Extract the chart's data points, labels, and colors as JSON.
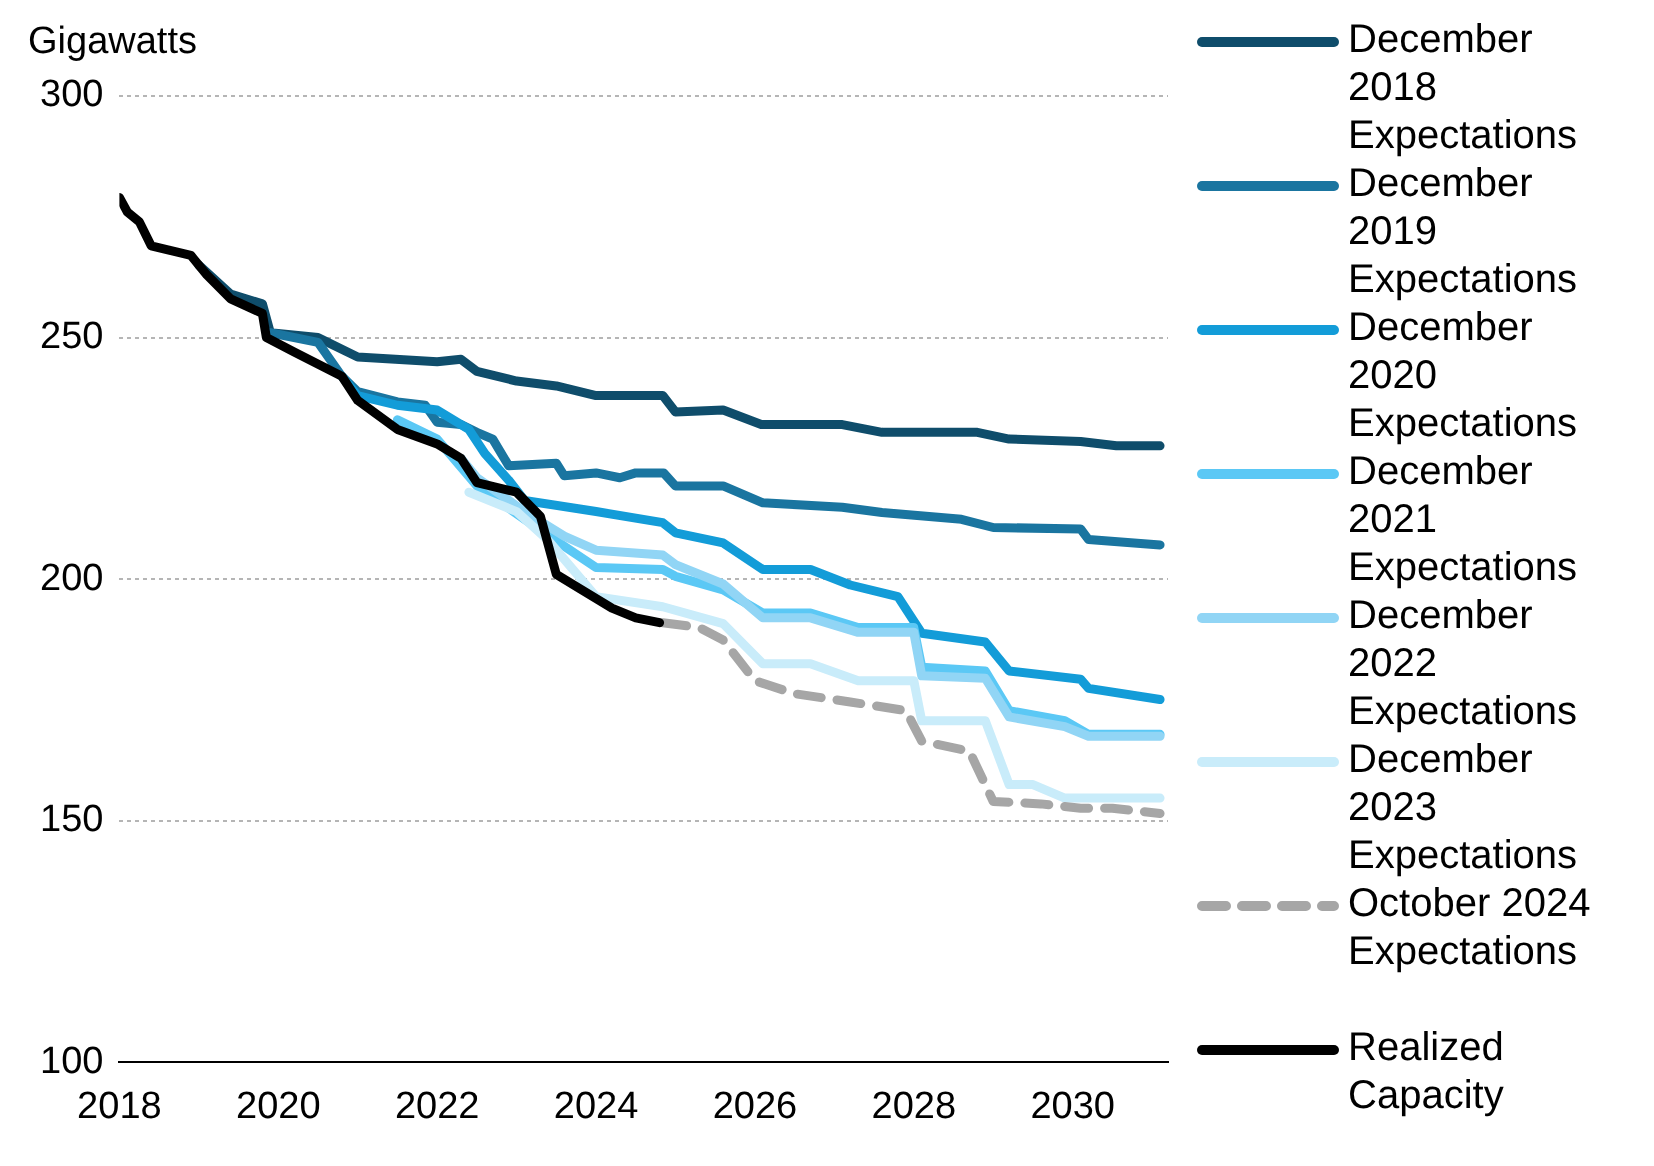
{
  "chart_data": {
    "type": "line",
    "ylabel": "Gigawatts",
    "xlim": [
      2018,
      2031.2
    ],
    "xticks": [
      2018,
      2020,
      2022,
      2024,
      2026,
      2028,
      2030
    ],
    "ylim": [
      100,
      300
    ],
    "yticks": [
      100,
      150,
      200,
      250,
      300
    ],
    "grid": "y",
    "legend": "right",
    "line_style": "solid",
    "marker": "none",
    "series": [
      {
        "name": "December 2018 Expectations",
        "color": "#0f4d6b",
        "x": [
          2019.0,
          2019.4,
          2019.8,
          2019.9,
          2020.5,
          2021.0,
          2022.0,
          2022.3,
          2022.5,
          2023.0,
          2023.5,
          2024.0,
          2024.84,
          2025.0,
          2025.6,
          2026.08,
          2027.1,
          2027.6,
          2028.8,
          2029.2,
          2030.1,
          2030.55,
          2031.1
        ],
        "values": [
          265,
          259,
          257,
          251,
          250,
          246,
          245,
          245.5,
          243,
          241,
          240,
          238,
          238,
          234.6,
          235,
          232,
          232,
          230.4,
          230.4,
          229,
          228.5,
          227.6,
          227.6
        ]
      },
      {
        "name": "December 2019 Expectations",
        "color": "#1a75a0",
        "x": [
          2019.9,
          2020.5,
          2020.8,
          2021.0,
          2021.5,
          2021.85,
          2022.0,
          2022.3,
          2022.5,
          2022.7,
          2022.9,
          2023.5,
          2023.6,
          2024.0,
          2024.3,
          2024.5,
          2024.85,
          2025.0,
          2025.6,
          2026.1,
          2027.1,
          2027.6,
          2028.6,
          2029.0,
          2030.1,
          2030.2,
          2031.1
        ],
        "values": [
          251,
          249,
          242,
          238.8,
          236.7,
          236,
          232.5,
          232,
          230.4,
          229,
          223.5,
          224,
          221.4,
          222,
          221,
          222,
          222,
          219.3,
          219.3,
          215.8,
          214.9,
          213.8,
          212.4,
          210.7,
          210.4,
          208.2,
          207.1
        ]
      },
      {
        "name": "December 2020 Expectations",
        "color": "#139cd8",
        "x": [
          2020.8,
          2021.0,
          2021.5,
          2022.0,
          2022.4,
          2022.6,
          2022.9,
          2023.1,
          2024.0,
          2024.84,
          2025.0,
          2025.6,
          2026.1,
          2026.7,
          2027.2,
          2027.8,
          2028.1,
          2028.9,
          2029.2,
          2030.1,
          2030.2,
          2031.1
        ],
        "values": [
          242,
          238,
          236,
          235,
          231,
          226,
          220.5,
          216.3,
          214,
          211.7,
          209.6,
          207.5,
          202,
          202,
          198.8,
          196.4,
          188.8,
          187,
          181,
          179.3,
          177.4,
          175.1
        ]
      },
      {
        "name": "December 2021 Expectations",
        "color": "#5bc8f5",
        "x": [
          2021.5,
          2022.0,
          2022.5,
          2023.1,
          2023.6,
          2024.0,
          2024.84,
          2025.0,
          2025.6,
          2026.1,
          2026.7,
          2027.3,
          2028.0,
          2028.1,
          2028.9,
          2029.2,
          2029.9,
          2030.2,
          2031.1
        ],
        "values": [
          233,
          229,
          219.3,
          212.4,
          206.8,
          202.4,
          202,
          200.6,
          197.8,
          193,
          193,
          190,
          190,
          181.8,
          181,
          172.8,
          170.7,
          167.9,
          167.9
        ]
      },
      {
        "name": "December 2022 Expectations",
        "color": "#91d5f5",
        "x": [
          2022.3,
          2022.5,
          2023.1,
          2023.6,
          2024.0,
          2024.84,
          2025.0,
          2025.6,
          2026.1,
          2026.7,
          2027.3,
          2028.0,
          2028.1,
          2028.9,
          2029.2,
          2029.9,
          2030.2,
          2031.1
        ],
        "values": [
          225,
          221,
          214,
          208.9,
          206,
          205,
          203,
          199,
          192,
          192,
          189,
          189,
          180,
          179.5,
          171.5,
          169.5,
          167.5,
          167.5
        ]
      },
      {
        "name": "December 2023 Expectations",
        "color": "#c9ecfa",
        "x": [
          2022.4,
          2023.0,
          2023.4,
          2024.0,
          2024.84,
          2025.6,
          2026.1,
          2026.7,
          2027.3,
          2028.0,
          2028.1,
          2028.9,
          2029.2,
          2029.5,
          2029.9,
          2031.1
        ],
        "values": [
          218,
          214,
          208,
          196.4,
          194.3,
          190.8,
          182.5,
          182.5,
          179,
          179,
          170.7,
          170.7,
          157.5,
          157.5,
          154.7,
          154.7
        ]
      },
      {
        "name": "October 2024 Expectations",
        "color": "#a6a6a6",
        "line_style": "dashed",
        "x": [
          2024.84,
          2025.3,
          2025.6,
          2026.0,
          2026.5,
          2027.2,
          2027.9,
          2028.1,
          2028.7,
          2029.0,
          2029.6,
          2030.1,
          2030.5,
          2031.1
        ],
        "values": [
          191,
          190,
          187.4,
          179,
          176.3,
          174.6,
          172.8,
          166.5,
          164.4,
          154,
          153.5,
          152.6,
          152.6,
          151.5
        ]
      },
      {
        "name": "Realized Capacity",
        "color": "#000000",
        "x": [
          2018,
          2018.1,
          2018.25,
          2018.4,
          2018.9,
          2019.1,
          2019.4,
          2019.8,
          2019.85,
          2020.2,
          2020.8,
          2021.0,
          2021.5,
          2022.0,
          2022.3,
          2022.5,
          2023.0,
          2023.3,
          2023.5,
          2023.8,
          2024.2,
          2024.5,
          2024.8
        ],
        "values": [
          279,
          276,
          274,
          269,
          267,
          263,
          258,
          255,
          250,
          247,
          242,
          237,
          231,
          228,
          225,
          220,
          218,
          213,
          201,
          198,
          194,
          192,
          191
        ]
      }
    ]
  }
}
